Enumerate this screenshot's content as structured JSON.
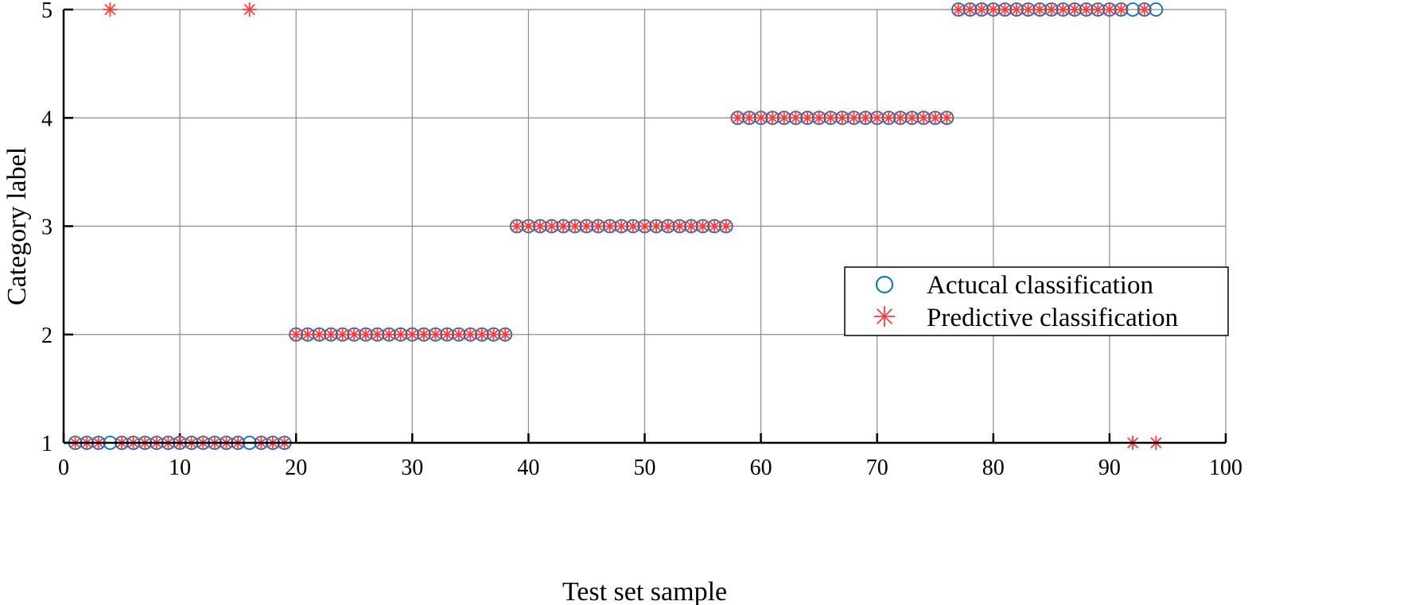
{
  "chart_data": {
    "type": "scatter",
    "title": "",
    "xlabel": "Test set sample",
    "ylabel": "Category label",
    "xlim": [
      0,
      100
    ],
    "ylim": [
      1,
      5
    ],
    "xticks": [
      0,
      10,
      20,
      30,
      40,
      50,
      60,
      70,
      80,
      90,
      100
    ],
    "yticks": [
      1,
      2,
      3,
      4,
      5
    ],
    "grid": true,
    "legend_position": "center-right",
    "series": [
      {
        "name": "Actucal classification",
        "marker": "circle",
        "color": "#0072BD",
        "x": [
          1,
          2,
          3,
          4,
          5,
          6,
          7,
          8,
          9,
          10,
          11,
          12,
          13,
          14,
          15,
          16,
          17,
          18,
          19,
          20,
          21,
          22,
          23,
          24,
          25,
          26,
          27,
          28,
          29,
          30,
          31,
          32,
          33,
          34,
          35,
          36,
          37,
          38,
          39,
          40,
          41,
          42,
          43,
          44,
          45,
          46,
          47,
          48,
          49,
          50,
          51,
          52,
          53,
          54,
          55,
          56,
          57,
          58,
          59,
          60,
          61,
          62,
          63,
          64,
          65,
          66,
          67,
          68,
          69,
          70,
          71,
          72,
          73,
          74,
          75,
          76,
          77,
          78,
          79,
          80,
          81,
          82,
          83,
          84,
          85,
          86,
          87,
          88,
          89,
          90,
          91,
          92,
          93,
          94
        ],
        "y": [
          1,
          1,
          1,
          1,
          1,
          1,
          1,
          1,
          1,
          1,
          1,
          1,
          1,
          1,
          1,
          1,
          1,
          1,
          1,
          2,
          2,
          2,
          2,
          2,
          2,
          2,
          2,
          2,
          2,
          2,
          2,
          2,
          2,
          2,
          2,
          2,
          2,
          2,
          3,
          3,
          3,
          3,
          3,
          3,
          3,
          3,
          3,
          3,
          3,
          3,
          3,
          3,
          3,
          3,
          3,
          3,
          3,
          4,
          4,
          4,
          4,
          4,
          4,
          4,
          4,
          4,
          4,
          4,
          4,
          4,
          4,
          4,
          4,
          4,
          4,
          4,
          5,
          5,
          5,
          5,
          5,
          5,
          5,
          5,
          5,
          5,
          5,
          5,
          5,
          5,
          5,
          5,
          5,
          5
        ]
      },
      {
        "name": "Predictive classification",
        "marker": "asterisk",
        "color": "#FF3B3B",
        "x": [
          1,
          2,
          3,
          4,
          5,
          6,
          7,
          8,
          9,
          10,
          11,
          12,
          13,
          14,
          15,
          16,
          17,
          18,
          19,
          20,
          21,
          22,
          23,
          24,
          25,
          26,
          27,
          28,
          29,
          30,
          31,
          32,
          33,
          34,
          35,
          36,
          37,
          38,
          39,
          40,
          41,
          42,
          43,
          44,
          45,
          46,
          47,
          48,
          49,
          50,
          51,
          52,
          53,
          54,
          55,
          56,
          57,
          58,
          59,
          60,
          61,
          62,
          63,
          64,
          65,
          66,
          67,
          68,
          69,
          70,
          71,
          72,
          73,
          74,
          75,
          76,
          77,
          78,
          79,
          80,
          81,
          82,
          83,
          84,
          85,
          86,
          87,
          88,
          89,
          90,
          91,
          92,
          93,
          94
        ],
        "y": [
          1,
          1,
          1,
          5,
          1,
          1,
          1,
          1,
          1,
          1,
          1,
          1,
          1,
          1,
          1,
          5,
          1,
          1,
          1,
          2,
          2,
          2,
          2,
          2,
          2,
          2,
          2,
          2,
          2,
          2,
          2,
          2,
          2,
          2,
          2,
          2,
          2,
          2,
          3,
          3,
          3,
          3,
          3,
          3,
          3,
          3,
          3,
          3,
          3,
          3,
          3,
          3,
          3,
          3,
          3,
          3,
          3,
          4,
          4,
          4,
          4,
          4,
          4,
          4,
          4,
          4,
          4,
          4,
          4,
          4,
          4,
          4,
          4,
          4,
          4,
          4,
          5,
          5,
          5,
          5,
          5,
          5,
          5,
          5,
          5,
          5,
          5,
          5,
          5,
          5,
          5,
          1,
          5,
          1
        ]
      }
    ]
  }
}
